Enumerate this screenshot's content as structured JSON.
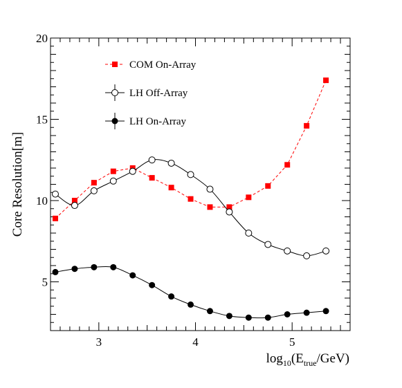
{
  "chart_data": {
    "type": "line",
    "title": "",
    "xlabel": {
      "prefix": "log",
      "prefix_sub": "10",
      "open": "(E",
      "sub": "true",
      "close": "/GeV)"
    },
    "ylabel": "Core Resolution[m]",
    "xlim": [
      2.5,
      5.6
    ],
    "ylim": [
      2,
      20
    ],
    "x_major_ticks": [
      3,
      4,
      5
    ],
    "y_major_ticks": [
      5,
      10,
      15,
      20
    ],
    "grid": false,
    "legend_position": "top-left",
    "series": [
      {
        "name": "COM On-Array",
        "color": "#ff0000",
        "marker": "square",
        "line_style": "dashed",
        "x": [
          2.55,
          2.75,
          2.95,
          3.15,
          3.35,
          3.55,
          3.75,
          3.95,
          4.15,
          4.35,
          4.55,
          4.75,
          4.95,
          5.15,
          5.35
        ],
        "y": [
          8.9,
          10.0,
          11.1,
          11.8,
          12.0,
          11.4,
          10.8,
          10.1,
          9.6,
          9.6,
          10.2,
          10.9,
          12.2,
          14.6,
          17.4
        ]
      },
      {
        "name": "LH Off-Array",
        "color": "#000000",
        "marker": "open-circle",
        "line_style": "solid",
        "x": [
          2.55,
          2.75,
          2.95,
          3.15,
          3.35,
          3.55,
          3.75,
          3.95,
          4.15,
          4.35,
          4.55,
          4.75,
          4.95,
          5.15,
          5.35
        ],
        "y": [
          10.4,
          9.7,
          10.6,
          11.2,
          11.8,
          12.5,
          12.3,
          11.6,
          10.7,
          9.3,
          8.0,
          7.3,
          6.9,
          6.6,
          6.9
        ]
      },
      {
        "name": "LH On-Array",
        "color": "#000000",
        "marker": "filled-circle",
        "line_style": "solid",
        "x": [
          2.55,
          2.75,
          2.95,
          3.15,
          3.35,
          3.55,
          3.75,
          3.95,
          4.15,
          4.35,
          4.55,
          4.75,
          4.95,
          5.15,
          5.35
        ],
        "y": [
          5.6,
          5.8,
          5.9,
          5.9,
          5.4,
          4.8,
          4.1,
          3.6,
          3.2,
          2.9,
          2.8,
          2.8,
          3.0,
          3.1,
          3.2
        ]
      }
    ]
  }
}
